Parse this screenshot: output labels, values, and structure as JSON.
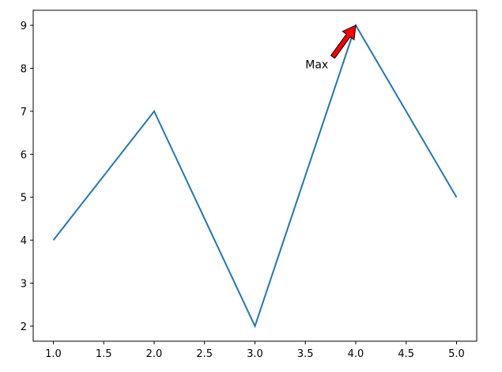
{
  "chart_data": {
    "type": "line",
    "title": "",
    "xlabel": "",
    "ylabel": "",
    "x": [
      1,
      2,
      3,
      4,
      5
    ],
    "series": [
      {
        "values": [
          4,
          7,
          2,
          9,
          5
        ],
        "color": "#1f77b4"
      }
    ],
    "xlim": [
      0.8,
      5.2
    ],
    "ylim": [
      1.65,
      9.35
    ],
    "xticks": [
      "1.0",
      "1.5",
      "2.0",
      "2.5",
      "3.0",
      "3.5",
      "4.0",
      "4.5",
      "5.0"
    ],
    "yticks": [
      "2",
      "3",
      "4",
      "5",
      "6",
      "7",
      "8",
      "9"
    ],
    "grid": false,
    "annotation": {
      "text": "Max",
      "xy": [
        4,
        9
      ],
      "xytext": [
        3.5,
        8
      ],
      "arrow_color": "#ff0000",
      "arrow_edge": "#000000"
    }
  }
}
